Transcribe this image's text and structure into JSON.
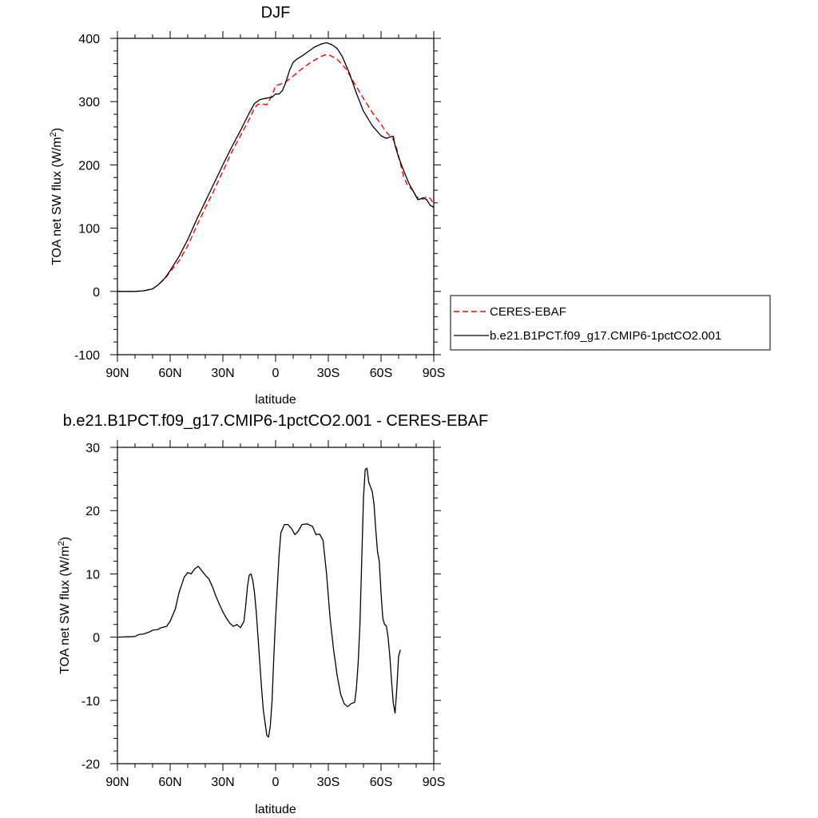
{
  "chart_data": [
    {
      "type": "line",
      "title": "DJF",
      "xlabel": "latitude",
      "ylabel": "TOA net SW flux (W/m²)",
      "ylabel_base": "TOA net SW flux (W/m",
      "ylabel_sup": "2",
      "ylabel_end": ")",
      "xlim": [
        90,
        -90
      ],
      "ylim": [
        -100,
        400
      ],
      "x_ticks": [
        90,
        60,
        30,
        0,
        -30,
        -60,
        -90
      ],
      "x_tick_labels": [
        "90N",
        "60N",
        "30N",
        "0",
        "30S",
        "60S",
        "90S"
      ],
      "y_ticks": [
        -100,
        0,
        100,
        200,
        300,
        400
      ],
      "y_tick_labels": [
        "-100",
        "0",
        "100",
        "200",
        "300",
        "400"
      ],
      "grid": false,
      "legend_position": "right",
      "series": [
        {
          "name": "CERES-EBAF",
          "color": "#ff0000",
          "dash": "dashed",
          "points": [
            [
              90,
              0
            ],
            [
              85,
              0
            ],
            [
              80,
              0
            ],
            [
              75,
              1
            ],
            [
              70,
              4
            ],
            [
              67,
              10
            ],
            [
              63,
              20
            ],
            [
              60,
              31
            ],
            [
              55,
              48
            ],
            [
              50,
              72
            ],
            [
              45,
              103
            ],
            [
              40,
              132
            ],
            [
              35,
              160
            ],
            [
              30,
              190
            ],
            [
              25,
              220
            ],
            [
              20,
              246
            ],
            [
              15,
              272
            ],
            [
              12,
              290
            ],
            [
              10,
              296
            ],
            [
              7,
              296
            ],
            [
              5,
              295
            ],
            [
              3,
              305
            ],
            [
              1,
              317
            ],
            [
              0,
              325
            ],
            [
              -3,
              328
            ],
            [
              -6,
              332
            ],
            [
              -9,
              338
            ],
            [
              -12,
              345
            ],
            [
              -15,
              352
            ],
            [
              -20,
              362
            ],
            [
              -25,
              370
            ],
            [
              -28,
              374
            ],
            [
              -31,
              373
            ],
            [
              -35,
              367
            ],
            [
              -40,
              352
            ],
            [
              -45,
              328
            ],
            [
              -50,
              305
            ],
            [
              -55,
              283
            ],
            [
              -60,
              264
            ],
            [
              -63,
              252
            ],
            [
              -66,
              243
            ],
            [
              -67,
              240
            ],
            [
              -69,
              225
            ],
            [
              -71,
              202
            ],
            [
              -73,
              180
            ],
            [
              -75,
              168
            ],
            [
              -78,
              160
            ],
            [
              -80,
              150
            ],
            [
              -82,
              146
            ],
            [
              -84,
              146
            ],
            [
              -86,
              150
            ],
            [
              -88,
              147
            ],
            [
              -90,
              138
            ]
          ]
        },
        {
          "name": "b.e21.B1PCT.f09_g17.CMIP6-1pctCO2.001",
          "color": "#000000",
          "dash": "solid",
          "points": [
            [
              90,
              0
            ],
            [
              85,
              0
            ],
            [
              80,
              0
            ],
            [
              75,
              1
            ],
            [
              70,
              4
            ],
            [
              67,
              10
            ],
            [
              63,
              21
            ],
            [
              60,
              33
            ],
            [
              55,
              55
            ],
            [
              50,
              82
            ],
            [
              45,
              113
            ],
            [
              40,
              142
            ],
            [
              35,
              171
            ],
            [
              30,
              200
            ],
            [
              25,
              228
            ],
            [
              20,
              254
            ],
            [
              15,
              282
            ],
            [
              12,
              297
            ],
            [
              9,
              303
            ],
            [
              6,
              305
            ],
            [
              4,
              306
            ],
            [
              2,
              307
            ],
            [
              0,
              312
            ],
            [
              -2,
              312
            ],
            [
              -4,
              318
            ],
            [
              -6,
              332
            ],
            [
              -8,
              350
            ],
            [
              -10,
              362
            ],
            [
              -12,
              367
            ],
            [
              -15,
              372
            ],
            [
              -18,
              378
            ],
            [
              -22,
              386
            ],
            [
              -26,
              391
            ],
            [
              -29,
              393
            ],
            [
              -32,
              390
            ],
            [
              -35,
              384
            ],
            [
              -38,
              371
            ],
            [
              -42,
              345
            ],
            [
              -46,
              313
            ],
            [
              -50,
              285
            ],
            [
              -55,
              262
            ],
            [
              -60,
              246
            ],
            [
              -63,
              242
            ],
            [
              -65,
              244
            ],
            [
              -66,
              245
            ],
            [
              -67,
              245
            ],
            [
              -68,
              230
            ],
            [
              -70,
              212
            ],
            [
              -73,
              190
            ],
            [
              -76,
              170
            ],
            [
              -79,
              155
            ],
            [
              -81,
              145
            ],
            [
              -84,
              148
            ],
            [
              -86,
              145
            ],
            [
              -88,
              136
            ],
            [
              -90,
              133
            ]
          ]
        }
      ]
    },
    {
      "type": "line",
      "title": "b.e21.B1PCT.f09_g17.CMIP6-1pctCO2.001 - CERES-EBAF",
      "xlabel": "latitude",
      "ylabel": "TOA net SW flux (W/m²)",
      "ylabel_base": "TOA net SW flux (W/m",
      "ylabel_sup": "2",
      "ylabel_end": ")",
      "xlim": [
        90,
        -90
      ],
      "ylim": [
        -20,
        30
      ],
      "x_ticks": [
        90,
        60,
        30,
        0,
        -30,
        -60,
        -90
      ],
      "x_tick_labels": [
        "90N",
        "60N",
        "30N",
        "0",
        "30S",
        "60S",
        "90S"
      ],
      "y_ticks": [
        -20,
        -10,
        0,
        10,
        20,
        30
      ],
      "y_tick_labels": [
        "-20",
        "-10",
        "0",
        "10",
        "20",
        "30"
      ],
      "grid": false,
      "series": [
        {
          "color": "#000000",
          "dash": "solid",
          "points": [
            [
              90,
              0
            ],
            [
              80,
              0.1
            ],
            [
              78,
              0.4
            ],
            [
              75,
              0.5
            ],
            [
              72,
              0.8
            ],
            [
              70,
              1.1
            ],
            [
              67,
              1.2
            ],
            [
              65,
              1.5
            ],
            [
              62,
              1.7
            ],
            [
              60,
              2.5
            ],
            [
              57,
              4.5
            ],
            [
              55,
              7
            ],
            [
              52,
              9.5
            ],
            [
              50,
              10.2
            ],
            [
              48,
              10
            ],
            [
              46,
              10.8
            ],
            [
              44,
              11.2
            ],
            [
              42,
              10.5
            ],
            [
              40,
              9.8
            ],
            [
              38,
              9.2
            ],
            [
              36,
              8
            ],
            [
              34,
              6.5
            ],
            [
              32,
              5.2
            ],
            [
              30,
              4
            ],
            [
              28,
              3
            ],
            [
              26,
              2.2
            ],
            [
              24,
              1.7
            ],
            [
              22,
              2
            ],
            [
              20,
              1.5
            ],
            [
              18,
              2.5
            ],
            [
              17,
              5
            ],
            [
              16,
              8
            ],
            [
              15,
              9.8
            ],
            [
              14,
              10
            ],
            [
              13,
              9
            ],
            [
              12,
              7
            ],
            [
              11,
              4
            ],
            [
              10,
              0
            ],
            [
              9,
              -4
            ],
            [
              8,
              -8
            ],
            [
              7,
              -11.5
            ],
            [
              6,
              -13.5
            ],
            [
              5,
              -15.5
            ],
            [
              4,
              -15.8
            ],
            [
              3,
              -14
            ],
            [
              2,
              -10
            ],
            [
              1,
              -3
            ],
            [
              0,
              3
            ],
            [
              -1,
              8
            ],
            [
              -2,
              13
            ],
            [
              -3,
              16.5
            ],
            [
              -5,
              17.8
            ],
            [
              -7,
              17.8
            ],
            [
              -9,
              17.2
            ],
            [
              -11,
              16.2
            ],
            [
              -13,
              16.8
            ],
            [
              -15,
              17.8
            ],
            [
              -18,
              17.9
            ],
            [
              -21,
              17.5
            ],
            [
              -23,
              16.2
            ],
            [
              -25,
              16.3
            ],
            [
              -27,
              15.3
            ],
            [
              -29,
              10
            ],
            [
              -31,
              3
            ],
            [
              -33,
              -2
            ],
            [
              -35,
              -6
            ],
            [
              -37,
              -9
            ],
            [
              -39,
              -10.5
            ],
            [
              -41,
              -11
            ],
            [
              -43,
              -10.5
            ],
            [
              -45,
              -10.3
            ],
            [
              -46,
              -8
            ],
            [
              -47,
              -4
            ],
            [
              -48,
              2
            ],
            [
              -49,
              12
            ],
            [
              -50,
              22
            ],
            [
              -51,
              26.5
            ],
            [
              -52,
              26.7
            ],
            [
              -53,
              24.5
            ],
            [
              -55,
              23
            ],
            [
              -56,
              21
            ],
            [
              -57,
              17
            ],
            [
              -58,
              13.5
            ],
            [
              -59,
              12
            ],
            [
              -60,
              7
            ],
            [
              -61,
              3
            ],
            [
              -62,
              2
            ],
            [
              -63,
              1.8
            ],
            [
              -64,
              0
            ],
            [
              -65,
              -3
            ],
            [
              -66,
              -7
            ],
            [
              -67,
              -10.5
            ],
            [
              -68,
              -12
            ],
            [
              -69,
              -8
            ],
            [
              -70,
              -3
            ],
            [
              -71,
              -2
            ]
          ]
        }
      ]
    }
  ]
}
